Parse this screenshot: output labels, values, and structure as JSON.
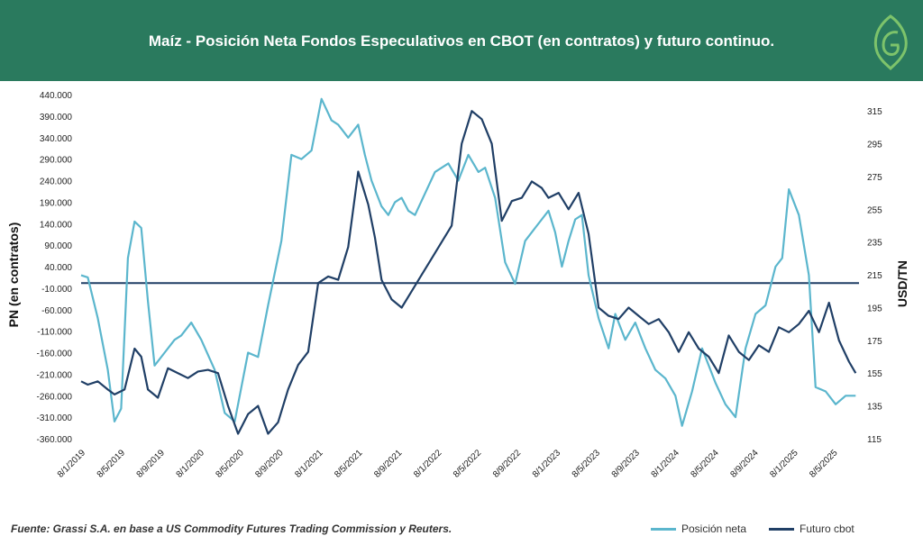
{
  "header": {
    "title": "Maíz - Posición Neta Fondos Especulativos en CBOT (en contratos) y futuro continuo."
  },
  "footer": {
    "source": "Fuente: Grassi S.A. en base a US Commodity  Futures Trading Commission y Reuters."
  },
  "colors": {
    "header_bg": "#2a7a5e",
    "posicion_neta": "#5bb6cd",
    "futuro_cbot": "#203f66",
    "logo": "#7dc36b"
  },
  "chart_data": {
    "type": "line",
    "xlabel": "",
    "ylabel": "PN  (en contratos)",
    "y2label": "USD/TN",
    "ylim": [
      -360000,
      440000
    ],
    "y2lim": [
      115,
      325
    ],
    "yticks": [
      "440.000",
      "390.000",
      "340.000",
      "290.000",
      "240.000",
      "190.000",
      "140.000",
      "90.000",
      "40.000",
      "-10.000",
      "-60.000",
      "-110.000",
      "-160.000",
      "-210.000",
      "-260.000",
      "-310.000",
      "-360.000"
    ],
    "y2ticks": [
      "315",
      "295",
      "275",
      "255",
      "235",
      "215",
      "195",
      "175",
      "155",
      "135",
      "115"
    ],
    "xticks": [
      "8/1/2019",
      "8/5/2019",
      "8/9/2019",
      "8/1/2020",
      "8/5/2020",
      "8/9/2020",
      "8/1/2021",
      "8/5/2021",
      "8/9/2021",
      "8/1/2022",
      "8/5/2022",
      "8/9/2022",
      "8/1/2023",
      "8/5/2023",
      "8/9/2023",
      "8/1/2024",
      "8/5/2024",
      "8/9/2024",
      "8/1/2025",
      "8/5/2025"
    ],
    "xrange": [
      0,
      23.3
    ],
    "reference_line_y2": 210,
    "legend_position": "bottom-right",
    "grid": false,
    "series": [
      {
        "name": "Posición neta",
        "axis": "left",
        "x": [
          0,
          0.2,
          0.5,
          0.8,
          1.0,
          1.2,
          1.4,
          1.6,
          1.8,
          2.0,
          2.2,
          2.5,
          2.8,
          3.0,
          3.3,
          3.6,
          4.0,
          4.3,
          4.6,
          5.0,
          5.3,
          5.6,
          6.0,
          6.3,
          6.6,
          6.9,
          7.2,
          7.5,
          7.7,
          8.0,
          8.3,
          8.5,
          8.7,
          9.0,
          9.2,
          9.4,
          9.6,
          9.8,
          10.0,
          10.3,
          10.6,
          11.0,
          11.3,
          11.6,
          11.9,
          12.1,
          12.4,
          12.7,
          13.0,
          13.3,
          13.6,
          14.0,
          14.2,
          14.4,
          14.6,
          14.8,
          15.0,
          15.2,
          15.5,
          15.8,
          16.0,
          16.3,
          16.6,
          16.9,
          17.2,
          17.5,
          17.8,
          18.0,
          18.3,
          18.6,
          19.0,
          19.3,
          19.6,
          19.9,
          20.2,
          20.5,
          20.8,
          21.0,
          21.2,
          21.5,
          21.8,
          22.0,
          22.3,
          22.6,
          22.9,
          23.2
        ],
        "y": [
          20000,
          15000,
          -80000,
          -200000,
          -320000,
          -290000,
          60000,
          145000,
          130000,
          -40000,
          -190000,
          -160000,
          -130000,
          -120000,
          -90000,
          -130000,
          -200000,
          -300000,
          -320000,
          -160000,
          -170000,
          -50000,
          100000,
          300000,
          290000,
          310000,
          430000,
          380000,
          370000,
          340000,
          370000,
          300000,
          240000,
          180000,
          160000,
          190000,
          200000,
          170000,
          160000,
          210000,
          260000,
          280000,
          240000,
          300000,
          260000,
          270000,
          200000,
          50000,
          0,
          100000,
          130000,
          170000,
          120000,
          40000,
          100000,
          150000,
          160000,
          20000,
          -80000,
          -150000,
          -70000,
          -130000,
          -90000,
          -150000,
          -200000,
          -220000,
          -260000,
          -330000,
          -250000,
          -150000,
          -230000,
          -280000,
          -310000,
          -150000,
          -70000,
          -50000,
          40000,
          60000,
          220000,
          160000,
          20000,
          -240000,
          -250000,
          -280000,
          -260000,
          -260000
        ]
      },
      {
        "name": "Futuro cbot",
        "axis": "right",
        "x": [
          0,
          0.2,
          0.5,
          0.8,
          1.0,
          1.3,
          1.6,
          1.8,
          2.0,
          2.3,
          2.6,
          2.9,
          3.2,
          3.5,
          3.8,
          4.1,
          4.4,
          4.7,
          5.0,
          5.3,
          5.6,
          5.9,
          6.2,
          6.5,
          6.8,
          7.1,
          7.4,
          7.7,
          8.0,
          8.3,
          8.6,
          8.8,
          9.0,
          9.3,
          9.6,
          9.9,
          10.2,
          10.5,
          10.8,
          11.1,
          11.4,
          11.7,
          12.0,
          12.3,
          12.6,
          12.9,
          13.2,
          13.5,
          13.8,
          14.0,
          14.3,
          14.6,
          14.9,
          15.2,
          15.5,
          15.8,
          16.1,
          16.4,
          16.7,
          17.0,
          17.3,
          17.6,
          17.9,
          18.2,
          18.5,
          18.8,
          19.1,
          19.4,
          19.7,
          20.0,
          20.3,
          20.6,
          20.9,
          21.2,
          21.5,
          21.8,
          22.1,
          22.4,
          22.7,
          23.0,
          23.2
        ],
        "y": [
          150,
          148,
          150,
          145,
          142,
          145,
          170,
          165,
          145,
          140,
          158,
          155,
          152,
          156,
          157,
          155,
          135,
          118,
          130,
          135,
          118,
          125,
          145,
          160,
          168,
          210,
          214,
          212,
          232,
          278,
          258,
          238,
          212,
          200,
          195,
          205,
          215,
          225,
          235,
          245,
          295,
          315,
          310,
          295,
          248,
          260,
          262,
          272,
          268,
          262,
          265,
          255,
          265,
          240,
          195,
          190,
          188,
          195,
          190,
          185,
          188,
          180,
          168,
          180,
          170,
          165,
          155,
          178,
          168,
          163,
          172,
          168,
          183,
          180,
          185,
          193,
          180,
          198,
          175,
          162,
          155
        ]
      }
    ]
  }
}
